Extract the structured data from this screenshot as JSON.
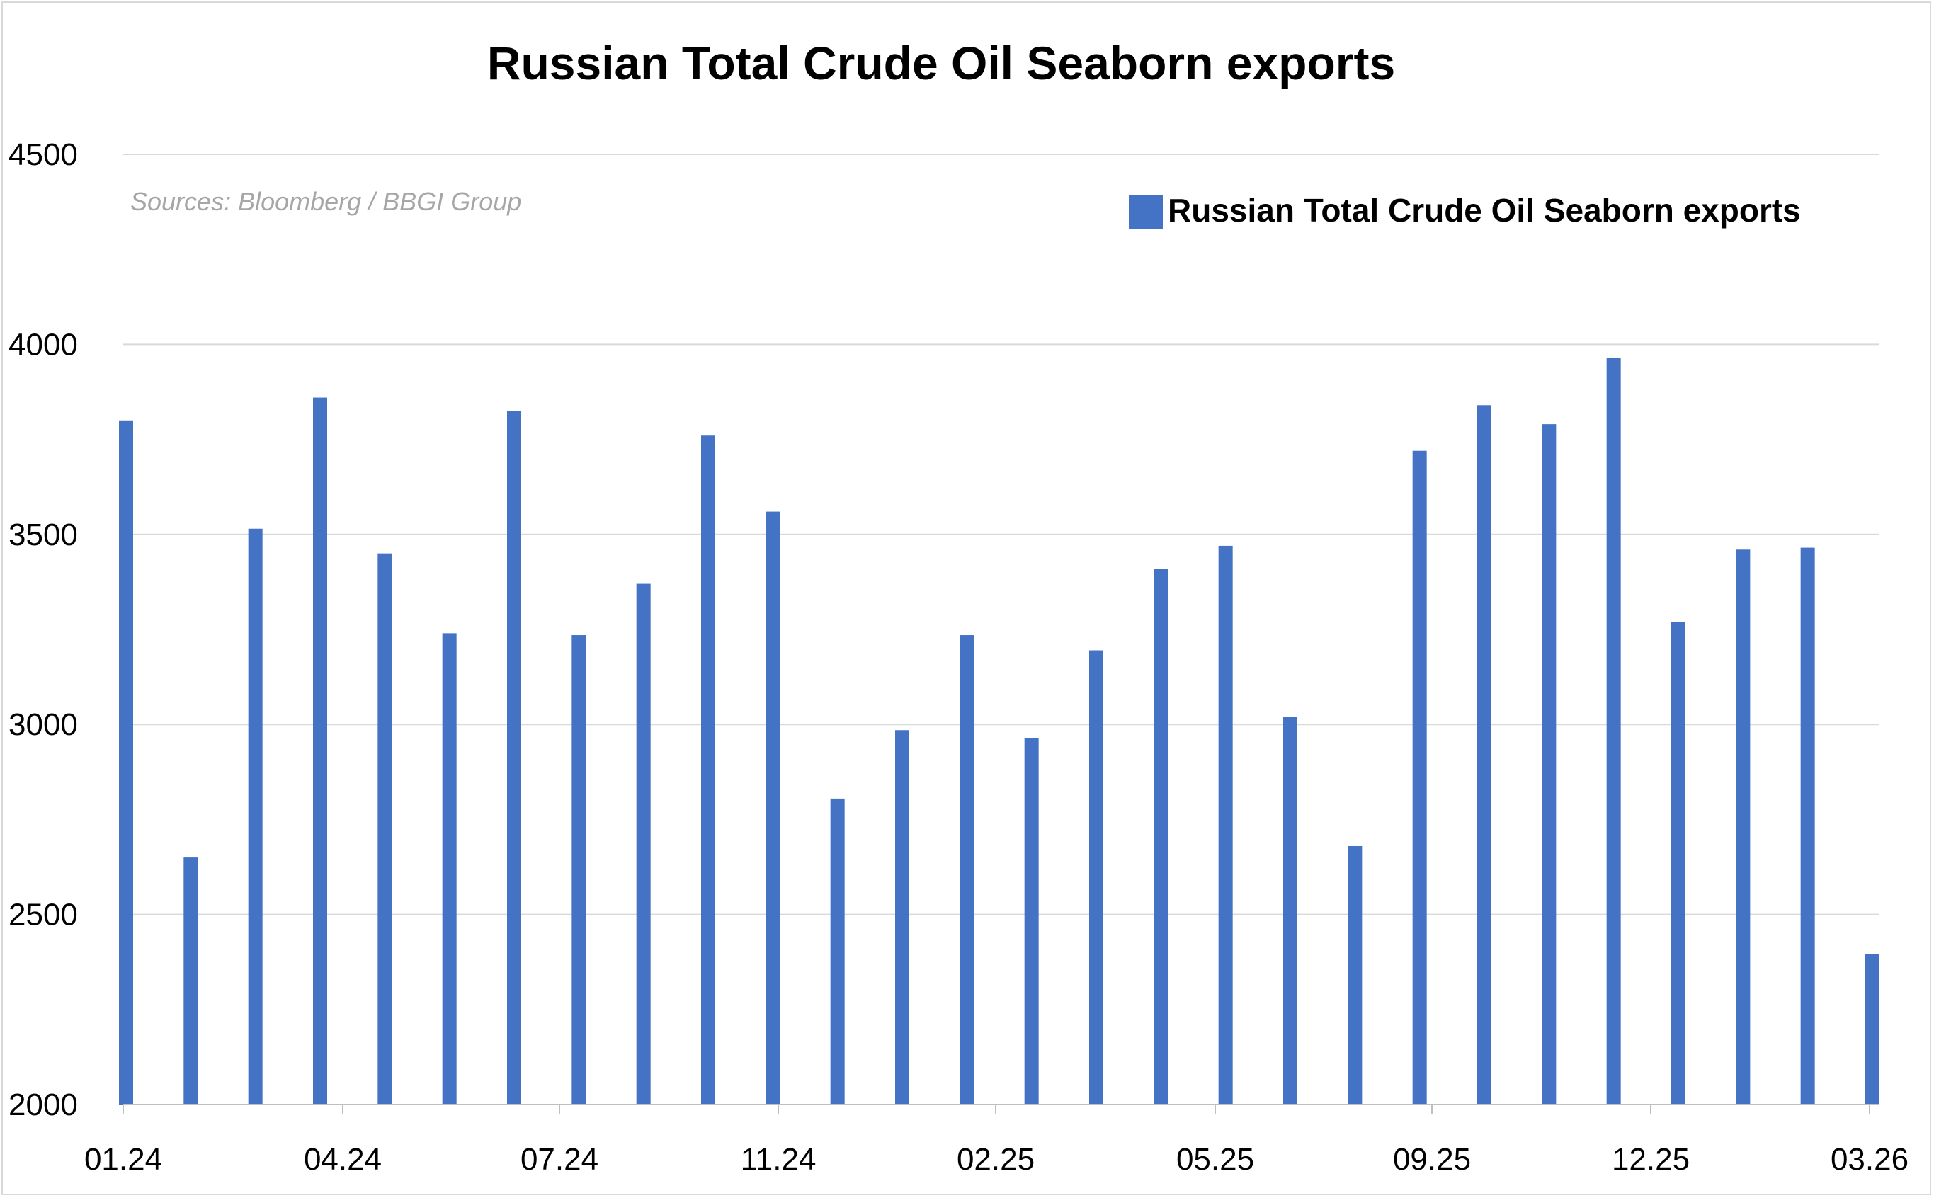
{
  "chart_data": {
    "type": "bar",
    "title": "Russian Total Crude Oil Seaborn exports",
    "source": "Sources: Bloomberg / BBGI Group",
    "legend": {
      "position": "top-right",
      "entries": [
        "Russian Total Crude Oil Seaborn exports"
      ]
    },
    "xlabel": "",
    "ylabel": "",
    "ylim": [
      2000,
      4500
    ],
    "yticks": [
      2000,
      2500,
      3000,
      3500,
      4000,
      4500
    ],
    "grid": true,
    "color": "#4472c4",
    "x_ticks": [
      "01.24",
      "04.24",
      "07.24",
      "11.24",
      "02.25",
      "05.25",
      "09.25",
      "12.25",
      "03.26"
    ],
    "series": [
      {
        "name": "Russian Total Crude Oil Seaborn exports",
        "values": [
          3800,
          2650,
          3515,
          3860,
          3450,
          3240,
          3825,
          3235,
          3370,
          3760,
          3560,
          2805,
          2985,
          3235,
          2965,
          3195,
          3410,
          3470,
          3020,
          2680,
          3720,
          3840,
          3790,
          3965,
          3270,
          3460,
          3465,
          2395
        ]
      }
    ]
  }
}
